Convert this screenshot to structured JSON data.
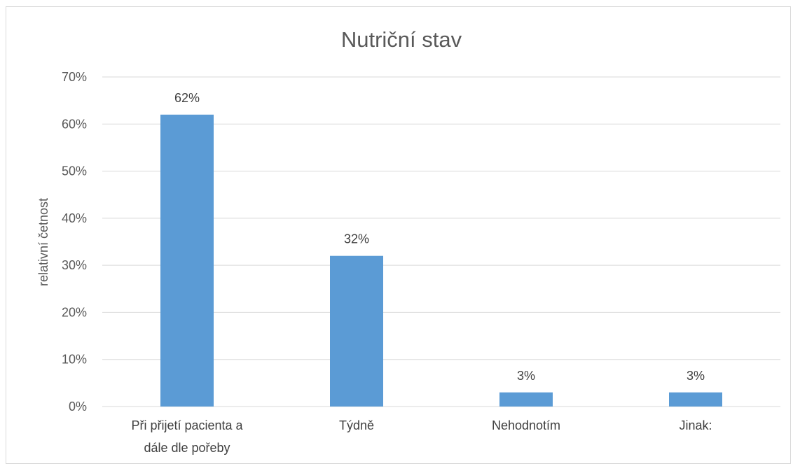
{
  "chart_data": {
    "type": "bar",
    "title": "Nutriční stav",
    "xlabel": "",
    "ylabel": "relativní četnost",
    "ylim": [
      0,
      70
    ],
    "yticks": [
      "0%",
      "10%",
      "20%",
      "30%",
      "40%",
      "50%",
      "60%",
      "70%"
    ],
    "categories": [
      [
        "Při přijetí pacienta a",
        "dále dle pořeby"
      ],
      [
        "Týdně"
      ],
      [
        "Nehodnotím"
      ],
      [
        "Jinak:"
      ]
    ],
    "values": [
      62,
      32,
      3,
      3
    ],
    "data_labels": [
      "62%",
      "32%",
      "3%",
      "3%"
    ],
    "bar_color": "#5b9bd5",
    "grid": true,
    "legend": "none"
  }
}
